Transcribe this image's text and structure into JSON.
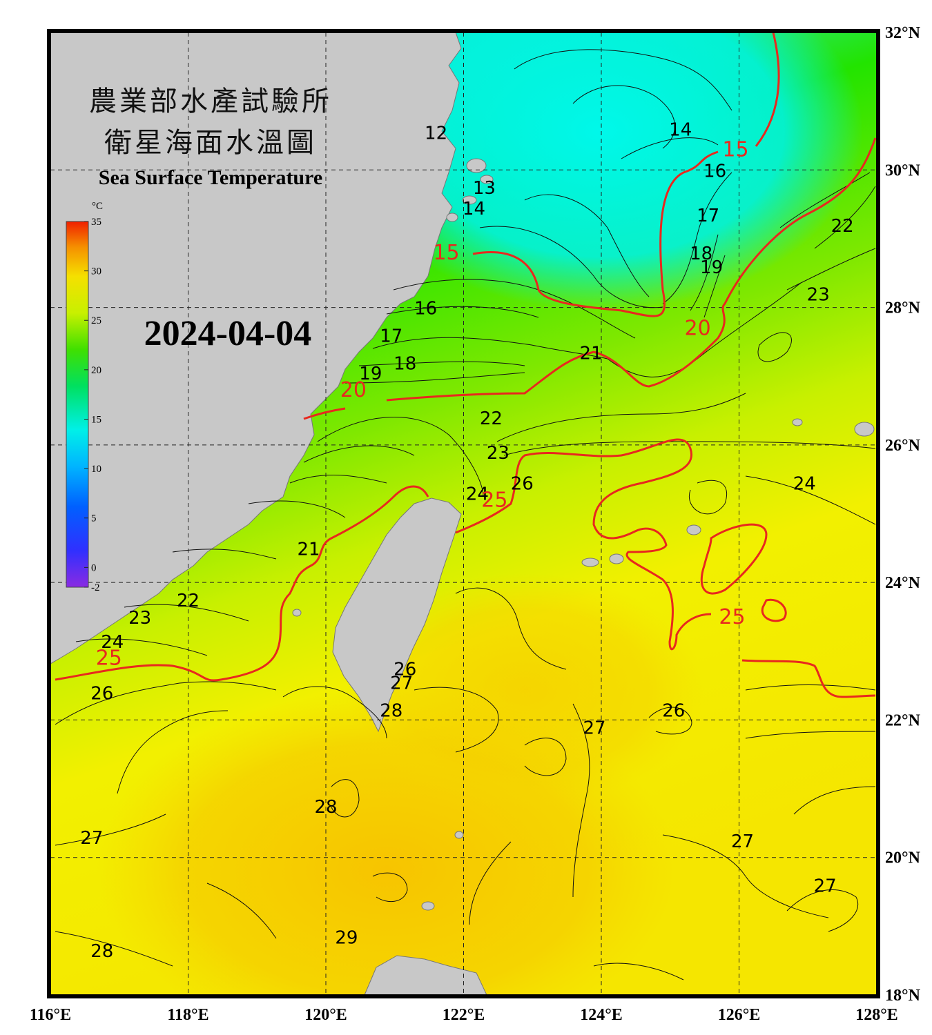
{
  "title": {
    "agency": "農業部水產試驗所",
    "product": "衛星海面水溫圖",
    "english": "Sea Surface Temperature"
  },
  "date": "2024-04-04",
  "colorbar": {
    "unit": "°C",
    "ticks": [
      "35",
      "30",
      "25",
      "20",
      "15",
      "10",
      "5",
      "0",
      "-2"
    ],
    "min": -2,
    "max": 35
  },
  "axes": {
    "lon_labels": [
      "116°E",
      "118°E",
      "120°E",
      "122°E",
      "124°E",
      "126°E",
      "128°E"
    ],
    "lat_labels": [
      "32°N",
      "30°N",
      "28°N",
      "26°N",
      "24°N",
      "22°N",
      "20°N",
      "18°N"
    ],
    "lon_range": [
      116,
      128
    ],
    "lat_range": [
      18,
      32
    ],
    "grid": true
  },
  "colors": {
    "cold": "#00f5e8",
    "green": "#22e600",
    "yellow_green": "#c8f000",
    "yellow": "#f5f000",
    "orange": "#f5c800",
    "land": "#c8c8c8",
    "major_contour": "#e8281e",
    "minor_contour": "#000000"
  },
  "contour_labels": {
    "minor": [
      {
        "t": "12",
        "lon": 121.6,
        "lat": 30.45
      },
      {
        "t": "13",
        "lon": 122.3,
        "lat": 29.65
      },
      {
        "t": "14",
        "lon": 122.15,
        "lat": 29.35
      },
      {
        "t": "14",
        "lon": 125.15,
        "lat": 30.5
      },
      {
        "t": "16",
        "lon": 121.45,
        "lat": 27.9
      },
      {
        "t": "16",
        "lon": 125.65,
        "lat": 29.9
      },
      {
        "t": "17",
        "lon": 120.95,
        "lat": 27.5
      },
      {
        "t": "17",
        "lon": 125.55,
        "lat": 29.25
      },
      {
        "t": "18",
        "lon": 121.15,
        "lat": 27.1
      },
      {
        "t": "18",
        "lon": 125.45,
        "lat": 28.7
      },
      {
        "t": "19",
        "lon": 120.65,
        "lat": 26.95
      },
      {
        "t": "19",
        "lon": 125.6,
        "lat": 28.5
      },
      {
        "t": "21",
        "lon": 119.75,
        "lat": 24.4
      },
      {
        "t": "21",
        "lon": 123.85,
        "lat": 27.25
      },
      {
        "t": "22",
        "lon": 118.0,
        "lat": 23.65
      },
      {
        "t": "22",
        "lon": 122.4,
        "lat": 26.3
      },
      {
        "t": "22",
        "lon": 127.5,
        "lat": 29.1
      },
      {
        "t": "23",
        "lon": 117.3,
        "lat": 23.4
      },
      {
        "t": "23",
        "lon": 122.5,
        "lat": 25.8
      },
      {
        "t": "23",
        "lon": 127.15,
        "lat": 28.1
      },
      {
        "t": "24",
        "lon": 116.9,
        "lat": 23.05
      },
      {
        "t": "24",
        "lon": 122.2,
        "lat": 25.2
      },
      {
        "t": "24",
        "lon": 126.95,
        "lat": 25.35
      },
      {
        "t": "26",
        "lon": 116.75,
        "lat": 22.3
      },
      {
        "t": "26",
        "lon": 122.85,
        "lat": 25.35
      },
      {
        "t": "26",
        "lon": 121.15,
        "lat": 22.65
      },
      {
        "t": "26",
        "lon": 125.05,
        "lat": 22.05
      },
      {
        "t": "27",
        "lon": 121.1,
        "lat": 22.45
      },
      {
        "t": "27",
        "lon": 123.9,
        "lat": 21.8
      },
      {
        "t": "27",
        "lon": 116.6,
        "lat": 20.2
      },
      {
        "t": "27",
        "lon": 126.05,
        "lat": 20.15
      },
      {
        "t": "27",
        "lon": 127.25,
        "lat": 19.5
      },
      {
        "t": "28",
        "lon": 120.95,
        "lat": 22.05
      },
      {
        "t": "28",
        "lon": 120.0,
        "lat": 20.65
      },
      {
        "t": "28",
        "lon": 116.75,
        "lat": 18.55
      },
      {
        "t": "29",
        "lon": 120.3,
        "lat": 18.75
      }
    ],
    "major": [
      {
        "t": "15",
        "lon": 121.75,
        "lat": 28.7
      },
      {
        "t": "15",
        "lon": 125.95,
        "lat": 30.2
      },
      {
        "t": "20",
        "lon": 120.4,
        "lat": 26.7
      },
      {
        "t": "20",
        "lon": 125.4,
        "lat": 27.6
      },
      {
        "t": "25",
        "lon": 116.85,
        "lat": 22.8
      },
      {
        "t": "25",
        "lon": 122.45,
        "lat": 25.1
      },
      {
        "t": "25",
        "lon": 125.9,
        "lat": 23.4
      }
    ]
  }
}
